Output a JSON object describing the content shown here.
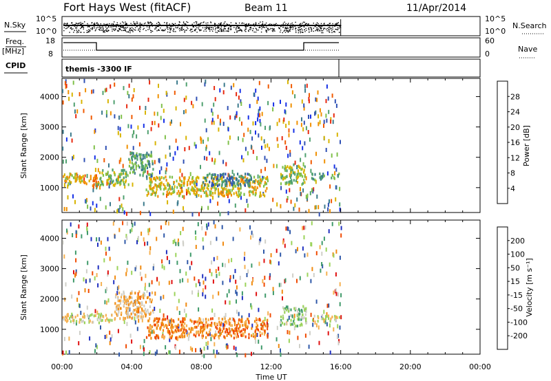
{
  "header": {
    "station": "Fort Hays West (fitACF)",
    "beam": "Beam 11",
    "date": "11/Apr/2014"
  },
  "strips": {
    "nsky_label": "N.Sky",
    "nsky_ticks": [
      "10^5",
      "10^0"
    ],
    "nsearch_label": "N.Search",
    "nsearch_ticks": [
      "10^5",
      "10^0"
    ],
    "freq_label": "Freq.",
    "freq_unit": "[MHz]",
    "freq_ticks": [
      "18",
      "8"
    ],
    "nave_label": "Nave",
    "nave_ticks": [
      "60",
      "0"
    ],
    "cpid_label": "CPID",
    "cpid_value": "themis -3300 IF"
  },
  "colors": {
    "power_scale": [
      "#1630e6",
      "#2f50b4",
      "#3b7a8c",
      "#4fa06f",
      "#7fc04a",
      "#d8b400",
      "#f09000",
      "#f05a00",
      "#e82a10"
    ],
    "velocity_scale": [
      "#e01010",
      "#f04a00",
      "#f08a10",
      "#f5b050",
      "#cfcfc8",
      "#9bd35a",
      "#3f9a6a",
      "#2f58a8",
      "#2030c0"
    ]
  },
  "chart_data": [
    {
      "type": "heatmap",
      "name": "power",
      "ylabel": "Slant Range [km]",
      "ylim": [
        180,
        4600
      ],
      "yticks": [
        "1000",
        "2000",
        "3000",
        "4000"
      ],
      "xlim_hours": [
        0,
        24
      ],
      "colorbar": {
        "label": "Power [dB]",
        "ticks": [
          "4",
          "8",
          "12",
          "16",
          "20",
          "24",
          "28"
        ],
        "range": [
          0,
          32
        ]
      },
      "data_end_time": "16:00",
      "bands": [
        {
          "t": [
            0.0,
            1.2
          ],
          "range_km": [
            1200,
            1550
          ],
          "value": 18
        },
        {
          "t": [
            1.2,
            2.0
          ],
          "range_km": [
            1050,
            1450
          ],
          "value": 22
        },
        {
          "t": [
            2.0,
            3.8
          ],
          "range_km": [
            1100,
            1650
          ],
          "value": 15
        },
        {
          "t": [
            3.8,
            5.2
          ],
          "range_km": [
            1400,
            2200
          ],
          "value": 12
        },
        {
          "t": [
            4.8,
            11.8
          ],
          "range_km": [
            750,
            1400
          ],
          "value": 20
        },
        {
          "t": [
            8.0,
            11.0
          ],
          "range_km": [
            1100,
            1500
          ],
          "value": 9
        },
        {
          "t": [
            12.5,
            14.0
          ],
          "range_km": [
            1150,
            1800
          ],
          "value": 14
        },
        {
          "t": [
            14.3,
            15.9
          ],
          "range_km": [
            1300,
            1500
          ],
          "value": 13
        }
      ]
    },
    {
      "type": "heatmap",
      "name": "velocity",
      "ylabel": "Slant Range [km]",
      "ylim": [
        180,
        4600
      ],
      "yticks": [
        "1000",
        "2000",
        "3000",
        "4000"
      ],
      "xlim_hours": [
        0,
        24
      ],
      "xticks": [
        "00:00",
        "04:00",
        "08:00",
        "12:00",
        "16:00",
        "20:00",
        "00:00"
      ],
      "xlabel": "Time UT",
      "colorbar": {
        "label": "Velocity [m s⁻¹]",
        "ticks": [
          "200",
          "100",
          "50",
          "15",
          "-15",
          "-50",
          "-100",
          "-200"
        ]
      },
      "data_end_time": "16:00",
      "bands": [
        {
          "t": [
            0.0,
            3.0
          ],
          "range_km": [
            1250,
            1550
          ],
          "value": 4
        },
        {
          "t": [
            3.0,
            5.2
          ],
          "range_km": [
            1400,
            2300
          ],
          "value": 3
        },
        {
          "t": [
            4.8,
            11.8
          ],
          "range_km": [
            750,
            1400
          ],
          "value": 2
        },
        {
          "t": [
            12.5,
            14.0
          ],
          "range_km": [
            1150,
            1800
          ],
          "value": 5
        },
        {
          "t": [
            14.3,
            15.9
          ],
          "range_km": [
            1300,
            1500
          ],
          "value": 4
        }
      ]
    }
  ]
}
